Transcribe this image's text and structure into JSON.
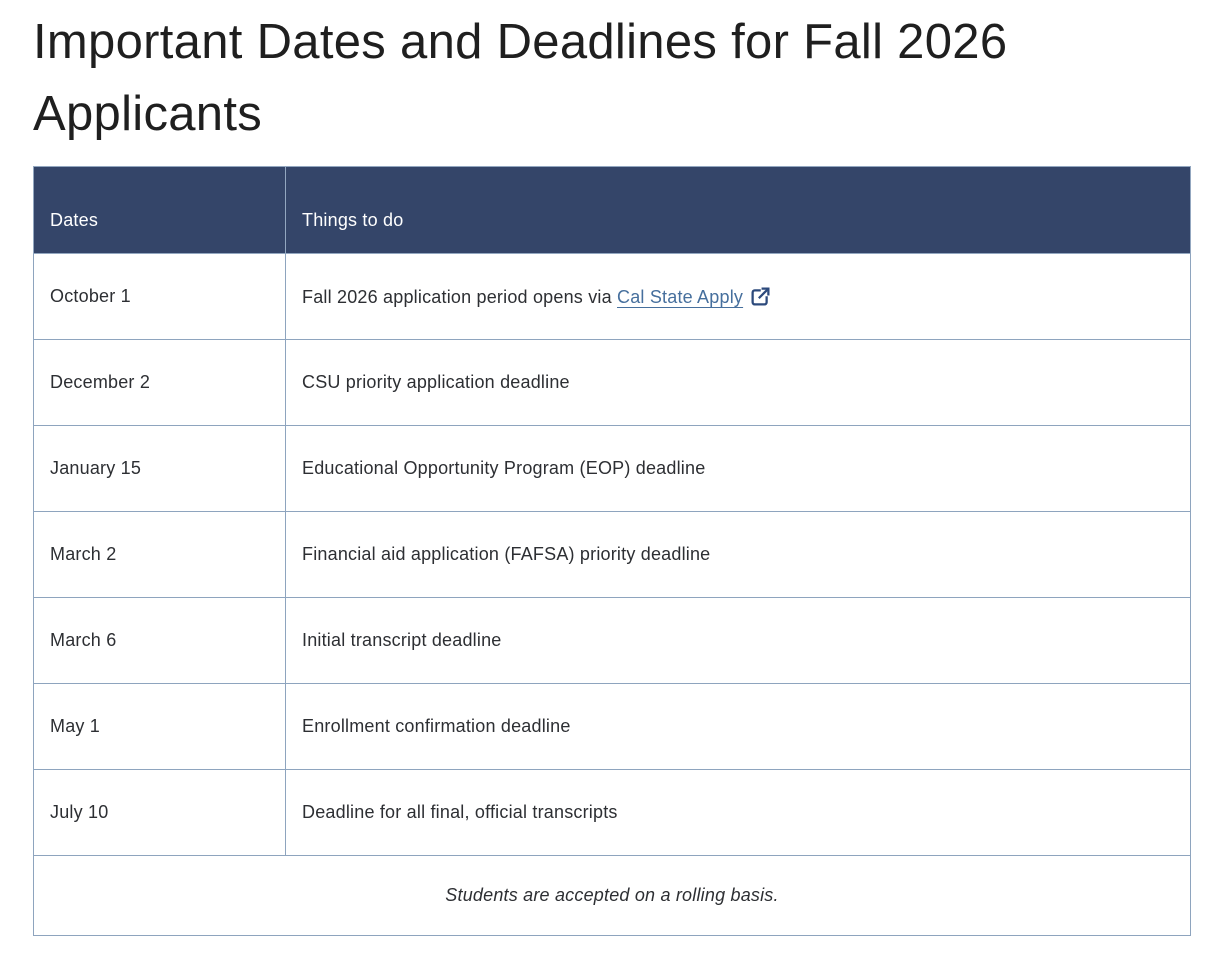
{
  "page": {
    "title": "Important Dates and Deadlines for Fall 2026 Applicants"
  },
  "colors": {
    "heading-text": "#1f1f1f",
    "body-text": "#2d2f33",
    "header-bg": "#344569",
    "header-text": "#ffffff",
    "border": "#8ea4be",
    "link": "#466f9d",
    "icon": "#2d4a7c"
  },
  "table": {
    "columns": [
      {
        "label": "Dates"
      },
      {
        "label": "Things to do"
      }
    ],
    "rows": [
      {
        "date": "October 1",
        "task_prefix": "Fall 2026 application period opens via ",
        "link": {
          "text": "Cal State Apply",
          "icon": "external-link-icon"
        }
      },
      {
        "date": "December 2",
        "task": "CSU priority application deadline"
      },
      {
        "date": "January 15",
        "task": "Educational Opportunity Program (EOP) deadline"
      },
      {
        "date": "March 2",
        "task": "Financial aid application (FAFSA) priority deadline"
      },
      {
        "date": "March 6",
        "task": "Initial transcript deadline"
      },
      {
        "date": "May 1",
        "task": "Enrollment confirmation deadline"
      },
      {
        "date": "July 10",
        "task": "Deadline for all final, official transcripts"
      }
    ],
    "footer_note": "Students are accepted on a rolling basis."
  }
}
